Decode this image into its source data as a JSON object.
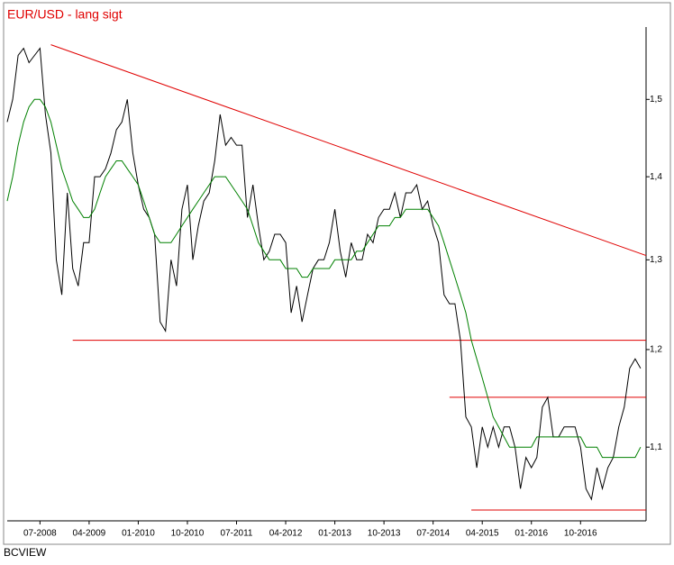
{
  "chart_data": {
    "type": "line",
    "title": "EUR/USD - lang sigt",
    "source": "BCVIEW",
    "log_scale": true,
    "xlim": [
      "01-2008",
      "10-2017"
    ],
    "xticks": [
      "07-2008",
      "04-2009",
      "01-2010",
      "10-2010",
      "07-2011",
      "04-2012",
      "01-2013",
      "10-2013",
      "07-2014",
      "04-2015",
      "01-2016",
      "10-2016"
    ],
    "ylim": [
      1.03,
      1.6
    ],
    "yticks": [
      {
        "value": 1.1,
        "label": "1,1"
      },
      {
        "value": 1.2,
        "label": "1,2"
      },
      {
        "value": 1.3,
        "label": "1,3"
      },
      {
        "value": 1.4,
        "label": "1,4"
      },
      {
        "value": 1.5,
        "label": "1,5"
      }
    ],
    "x": [
      "01-2008",
      "02-2008",
      "03-2008",
      "04-2008",
      "05-2008",
      "06-2008",
      "07-2008",
      "08-2008",
      "09-2008",
      "10-2008",
      "11-2008",
      "12-2008",
      "01-2009",
      "02-2009",
      "03-2009",
      "04-2009",
      "05-2009",
      "06-2009",
      "07-2009",
      "08-2009",
      "09-2009",
      "10-2009",
      "11-2009",
      "12-2009",
      "01-2010",
      "02-2010",
      "03-2010",
      "04-2010",
      "05-2010",
      "06-2010",
      "07-2010",
      "08-2010",
      "09-2010",
      "10-2010",
      "11-2010",
      "12-2010",
      "01-2011",
      "02-2011",
      "03-2011",
      "04-2011",
      "05-2011",
      "06-2011",
      "07-2011",
      "08-2011",
      "09-2011",
      "10-2011",
      "11-2011",
      "12-2011",
      "01-2012",
      "02-2012",
      "03-2012",
      "04-2012",
      "05-2012",
      "06-2012",
      "07-2012",
      "08-2012",
      "09-2012",
      "10-2012",
      "11-2012",
      "12-2012",
      "01-2013",
      "02-2013",
      "03-2013",
      "04-2013",
      "05-2013",
      "06-2013",
      "07-2013",
      "08-2013",
      "09-2013",
      "10-2013",
      "11-2013",
      "12-2013",
      "01-2014",
      "02-2014",
      "03-2014",
      "04-2014",
      "05-2014",
      "06-2014",
      "07-2014",
      "08-2014",
      "09-2014",
      "10-2014",
      "11-2014",
      "12-2014",
      "01-2015",
      "02-2015",
      "03-2015",
      "04-2015",
      "05-2015",
      "06-2015",
      "07-2015",
      "08-2015",
      "09-2015",
      "10-2015",
      "11-2015",
      "12-2015",
      "01-2016",
      "02-2016",
      "03-2016",
      "04-2016",
      "05-2016",
      "06-2016",
      "07-2016",
      "08-2016",
      "09-2016",
      "10-2016",
      "11-2016",
      "12-2016",
      "01-2017",
      "02-2017",
      "03-2017",
      "04-2017",
      "05-2017",
      "06-2017",
      "07-2017",
      "08-2017",
      "09-2017"
    ],
    "series": [
      {
        "color": "#000000",
        "values": [
          1.47,
          1.5,
          1.56,
          1.57,
          1.55,
          1.56,
          1.57,
          1.48,
          1.43,
          1.3,
          1.26,
          1.38,
          1.29,
          1.27,
          1.32,
          1.32,
          1.4,
          1.4,
          1.41,
          1.43,
          1.46,
          1.47,
          1.5,
          1.43,
          1.39,
          1.36,
          1.35,
          1.33,
          1.23,
          1.22,
          1.3,
          1.27,
          1.36,
          1.39,
          1.3,
          1.34,
          1.37,
          1.38,
          1.42,
          1.48,
          1.44,
          1.45,
          1.44,
          1.44,
          1.35,
          1.39,
          1.34,
          1.3,
          1.31,
          1.33,
          1.33,
          1.32,
          1.24,
          1.27,
          1.23,
          1.26,
          1.29,
          1.3,
          1.3,
          1.32,
          1.36,
          1.31,
          1.28,
          1.32,
          1.3,
          1.3,
          1.33,
          1.32,
          1.35,
          1.36,
          1.36,
          1.38,
          1.35,
          1.38,
          1.38,
          1.39,
          1.36,
          1.37,
          1.34,
          1.32,
          1.26,
          1.25,
          1.25,
          1.21,
          1.13,
          1.12,
          1.08,
          1.12,
          1.1,
          1.12,
          1.1,
          1.12,
          1.12,
          1.1,
          1.06,
          1.09,
          1.08,
          1.09,
          1.14,
          1.15,
          1.11,
          1.11,
          1.12,
          1.12,
          1.12,
          1.1,
          1.06,
          1.05,
          1.08,
          1.06,
          1.08,
          1.09,
          1.12,
          1.14,
          1.18,
          1.19,
          1.18
        ]
      },
      {
        "color": "#008000",
        "values": [
          1.37,
          1.4,
          1.44,
          1.47,
          1.49,
          1.5,
          1.5,
          1.49,
          1.47,
          1.44,
          1.41,
          1.39,
          1.37,
          1.36,
          1.35,
          1.35,
          1.36,
          1.38,
          1.4,
          1.41,
          1.42,
          1.42,
          1.41,
          1.4,
          1.39,
          1.37,
          1.35,
          1.33,
          1.32,
          1.32,
          1.32,
          1.33,
          1.34,
          1.35,
          1.36,
          1.37,
          1.38,
          1.39,
          1.4,
          1.4,
          1.4,
          1.39,
          1.38,
          1.37,
          1.36,
          1.34,
          1.32,
          1.31,
          1.3,
          1.3,
          1.3,
          1.29,
          1.29,
          1.29,
          1.28,
          1.28,
          1.29,
          1.29,
          1.29,
          1.29,
          1.3,
          1.3,
          1.3,
          1.3,
          1.31,
          1.31,
          1.32,
          1.33,
          1.34,
          1.34,
          1.34,
          1.35,
          1.35,
          1.36,
          1.36,
          1.36,
          1.36,
          1.36,
          1.35,
          1.34,
          1.32,
          1.3,
          1.28,
          1.26,
          1.24,
          1.21,
          1.19,
          1.17,
          1.15,
          1.13,
          1.12,
          1.11,
          1.1,
          1.1,
          1.1,
          1.1,
          1.1,
          1.11,
          1.11,
          1.11,
          1.11,
          1.11,
          1.11,
          1.11,
          1.11,
          1.11,
          1.1,
          1.1,
          1.1,
          1.09,
          1.09,
          1.09,
          1.09,
          1.09,
          1.09,
          1.09,
          1.1
        ]
      }
    ],
    "lines": [
      {
        "color": "#e00000",
        "x": [
          "09-2008",
          "10-2017"
        ],
        "values": [
          1.575,
          1.305
        ]
      },
      {
        "color": "#e00000",
        "x": [
          "01-2009",
          "10-2017"
        ],
        "values": [
          1.21,
          1.21
        ]
      },
      {
        "color": "#e00000",
        "x": [
          "10-2014",
          "10-2017"
        ],
        "values": [
          1.15,
          1.15
        ]
      },
      {
        "color": "#e00000",
        "x": [
          "02-2015",
          "10-2017"
        ],
        "values": [
          1.04,
          1.04
        ]
      }
    ]
  }
}
